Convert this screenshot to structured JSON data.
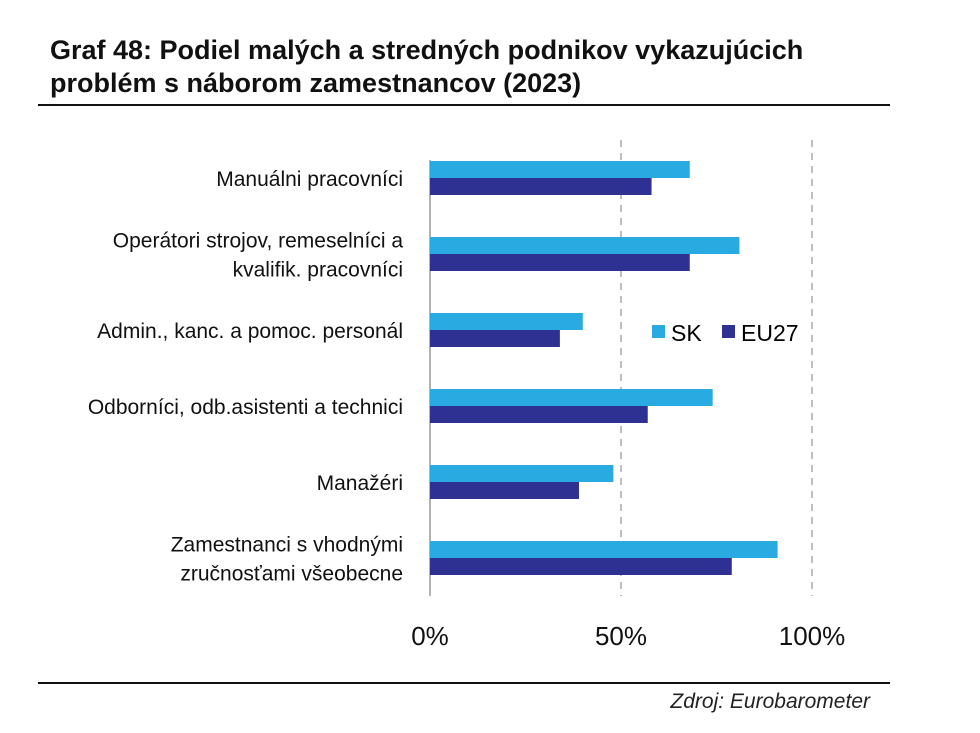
{
  "title": "Graf 48: Podiel malých a stredných podnikov vykazujúcich problém s náborom zamestnancov (2023)",
  "source": "Zdroj: Eurobarometer",
  "colors": {
    "SK": "#29abe2",
    "EU27": "#2e3192",
    "grid": "#bfbfbf",
    "axis": "#9a9a9a"
  },
  "chart_data": {
    "type": "bar",
    "orientation": "horizontal",
    "categories": [
      [
        "Manuálni pracovníci"
      ],
      [
        "Operátori strojov, remeselníci a",
        "kvalifik. pracovníci"
      ],
      [
        "Admin., kanc. a pomoc. personál"
      ],
      [
        "Odborníci, odb.asistenti a technici"
      ],
      [
        "Manažéri"
      ],
      [
        "Zamestnanci s vhodnými",
        "zručnosťami všeobecne"
      ]
    ],
    "series": [
      {
        "name": "SK",
        "values": [
          68,
          81,
          40,
          74,
          48,
          91
        ]
      },
      {
        "name": "EU27",
        "values": [
          58,
          68,
          34,
          57,
          39,
          79
        ]
      }
    ],
    "xlim": [
      0,
      100
    ],
    "xticks": [
      "0%",
      "50%",
      "100%"
    ],
    "xtick_values": [
      0,
      50,
      100
    ],
    "grid": "vertical dashed at 50% and 100%",
    "legend": "right-center"
  }
}
